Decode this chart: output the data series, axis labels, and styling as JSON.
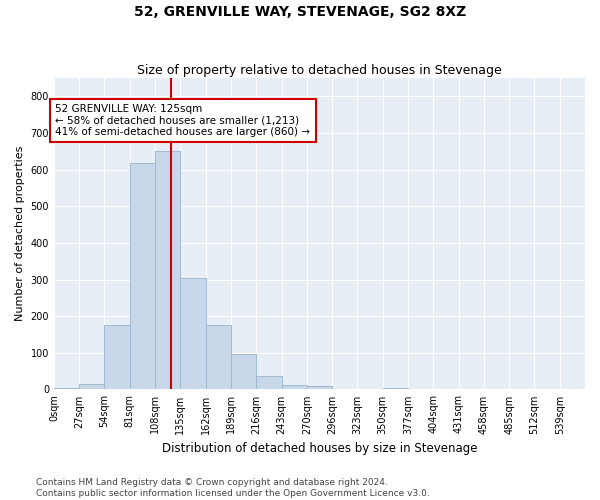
{
  "title": "52, GRENVILLE WAY, STEVENAGE, SG2 8XZ",
  "subtitle": "Size of property relative to detached houses in Stevenage",
  "xlabel": "Distribution of detached houses by size in Stevenage",
  "ylabel": "Number of detached properties",
  "bar_color": "#c8d8ea",
  "bar_edge_color": "#9ab5cc",
  "background_color": "#e8eef5",
  "grid_color": "#ffffff",
  "annotation_box_color": "#cc0000",
  "vline_color": "#cc0000",
  "categories": [
    "0sqm",
    "27sqm",
    "54sqm",
    "81sqm",
    "108sqm",
    "135sqm",
    "162sqm",
    "189sqm",
    "216sqm",
    "243sqm",
    "270sqm",
    "296sqm",
    "323sqm",
    "350sqm",
    "377sqm",
    "404sqm",
    "431sqm",
    "458sqm",
    "485sqm",
    "512sqm",
    "539sqm"
  ],
  "bar_heights": [
    5,
    14,
    175,
    617,
    650,
    305,
    175,
    97,
    37,
    13,
    10,
    0,
    0,
    5,
    0,
    0,
    0,
    0,
    0,
    0,
    0
  ],
  "bin_width": 27,
  "vline_x": 125,
  "annotation_text": "52 GRENVILLE WAY: 125sqm\n← 58% of detached houses are smaller (1,213)\n41% of semi-detached houses are larger (860) →",
  "ylim": [
    0,
    850
  ],
  "yticks": [
    0,
    100,
    200,
    300,
    400,
    500,
    600,
    700,
    800
  ],
  "footer_text": "Contains HM Land Registry data © Crown copyright and database right 2024.\nContains public sector information licensed under the Open Government Licence v3.0.",
  "title_fontsize": 10,
  "subtitle_fontsize": 9,
  "xlabel_fontsize": 8.5,
  "ylabel_fontsize": 8,
  "tick_fontsize": 7,
  "annotation_fontsize": 7.5,
  "footer_fontsize": 6.5
}
